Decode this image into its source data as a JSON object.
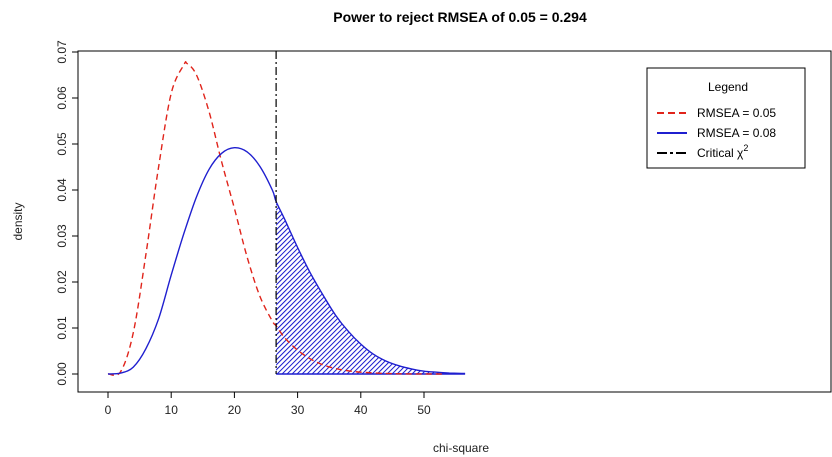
{
  "chart_data": {
    "type": "line",
    "title": "Power to reject RMSEA of 0.05 = 0.294",
    "xlabel": "chi-square",
    "ylabel": "density",
    "xlim": [
      0,
      57
    ],
    "ylim": [
      0,
      0.07
    ],
    "x_ticks": [
      "0",
      "10",
      "20",
      "30",
      "40",
      "50"
    ],
    "y_ticks": [
      "0.00",
      "0.01",
      "0.02",
      "0.03",
      "0.04",
      "0.05",
      "0.06",
      "0.07"
    ],
    "critical_chi2": 26.6,
    "series": [
      {
        "name": "RMSEA = 0.05",
        "color": "#e0241b",
        "style": "dashed",
        "x": [
          0,
          2,
          4,
          6,
          8,
          10,
          12,
          12.5,
          14,
          16,
          18,
          20,
          22,
          24,
          26,
          26.6,
          28,
          30,
          32,
          34,
          36,
          38,
          40,
          44,
          48,
          53
        ],
        "y": [
          0.0,
          0.0005,
          0.009,
          0.026,
          0.045,
          0.061,
          0.0672,
          0.0675,
          0.065,
          0.057,
          0.046,
          0.036,
          0.0255,
          0.017,
          0.0115,
          0.0105,
          0.0078,
          0.0052,
          0.0033,
          0.002,
          0.0012,
          0.0007,
          0.0004,
          0.00012,
          3e-05,
          0.0
        ]
      },
      {
        "name": "RMSEA = 0.08",
        "color": "#1f1fcf",
        "style": "solid",
        "x": [
          0,
          2,
          4,
          6,
          8,
          10,
          12,
          14,
          16,
          18,
          20,
          22,
          24,
          26,
          26.6,
          28,
          30,
          32,
          34,
          36,
          38,
          40,
          42,
          44,
          46,
          48,
          50,
          52,
          54,
          56.5
        ],
        "y": [
          0.0,
          0.0002,
          0.0015,
          0.0055,
          0.012,
          0.0215,
          0.0305,
          0.0385,
          0.0445,
          0.048,
          0.0492,
          0.0483,
          0.0452,
          0.04,
          0.0375,
          0.0335,
          0.0275,
          0.022,
          0.0172,
          0.0128,
          0.0093,
          0.0065,
          0.0043,
          0.0028,
          0.0018,
          0.0011,
          0.0006,
          0.0004,
          0.0002,
          0.0001
        ]
      }
    ],
    "legend": {
      "title": "Legend",
      "placement": "top-right",
      "entries": [
        {
          "label": "RMSEA =  0.05",
          "color": "#e0241b",
          "style": "dashed"
        },
        {
          "label": "RMSEA =  0.08",
          "color": "#1f1fcf",
          "style": "solid"
        },
        {
          "label": "Critical χ",
          "sup": "2",
          "color": "#000000",
          "style": "dashdot"
        }
      ]
    }
  }
}
